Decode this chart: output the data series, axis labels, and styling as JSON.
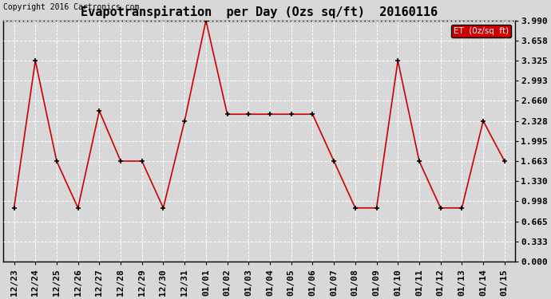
{
  "title": "Evapotranspiration  per Day (Ozs sq/ft)  20160116",
  "copyright": "Copyright 2016 Cartronics.com",
  "legend_label": "ET  (0z/sq  ft)",
  "x_labels": [
    "12/23",
    "12/24",
    "12/25",
    "12/26",
    "12/27",
    "12/28",
    "12/29",
    "12/30",
    "12/31",
    "01/01",
    "01/02",
    "01/03",
    "01/04",
    "01/05",
    "01/06",
    "01/07",
    "01/08",
    "01/09",
    "01/10",
    "01/11",
    "01/12",
    "01/13",
    "01/14",
    "01/15"
  ],
  "y_values": [
    0.888,
    3.325,
    1.663,
    0.888,
    2.495,
    1.663,
    1.663,
    0.888,
    2.328,
    3.99,
    2.439,
    2.439,
    2.439,
    2.439,
    2.439,
    1.663,
    0.888,
    0.888,
    3.325,
    1.663,
    0.888,
    0.888,
    2.328,
    1.663
  ],
  "y_ticks": [
    0.0,
    0.333,
    0.665,
    0.998,
    1.33,
    1.663,
    1.995,
    2.328,
    2.66,
    2.993,
    3.325,
    3.658,
    3.99
  ],
  "line_color": "#cc0000",
  "marker_color": "#000000",
  "bg_color": "#d8d8d8",
  "grid_color": "#ffffff",
  "legend_bg": "#cc0000",
  "legend_text_color": "#ffffff",
  "title_fontsize": 11,
  "copyright_fontsize": 7,
  "tick_fontsize": 8,
  "ylim": [
    0.0,
    3.99
  ]
}
